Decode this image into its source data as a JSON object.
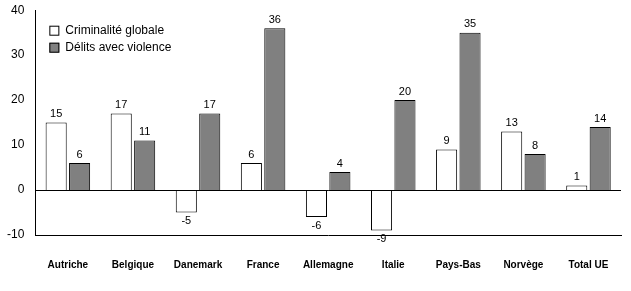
{
  "chart_data": {
    "type": "bar",
    "categories": [
      "Autriche",
      "Belgique",
      "Danemark",
      "France",
      "Allemagne",
      "Italie",
      "Pays-Bas",
      "Norvège",
      "Total UE"
    ],
    "series": [
      {
        "name": "Criminalité globale",
        "color": "#ffffff",
        "values": [
          15,
          17,
          -5,
          6,
          -6,
          -9,
          9,
          13,
          1
        ]
      },
      {
        "name": "Délits avec violence",
        "color": "#808080",
        "values": [
          6,
          11,
          17,
          36,
          4,
          20,
          35,
          8,
          14
        ]
      }
    ],
    "ylim": [
      -10,
      40
    ],
    "yticks": [
      -10,
      0,
      10,
      20,
      30,
      40
    ],
    "grid": false,
    "legend": "top-left",
    "data_labels": true
  }
}
